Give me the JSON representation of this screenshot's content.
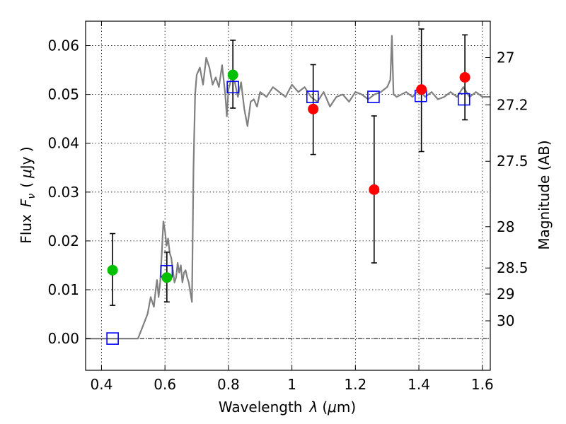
{
  "chart_data": {
    "type": "scatter",
    "xlabel_text": "Wavelength",
    "xlabel_var": "λ",
    "xlabel_unit_open": "(",
    "xlabel_unit_mu": "μ",
    "xlabel_unit_rest": "m)",
    "ylabel_text": "Flux",
    "ylabel_var": "F",
    "ylabel_sub": "ν",
    "ylabel_unit_open": "(",
    "ylabel_unit_mu": "μ",
    "ylabel_unit_rest": "Jy )",
    "y2label": "Magnitude (AB)",
    "xlim": [
      0.35,
      1.625
    ],
    "ylim": [
      -0.0065,
      0.065
    ],
    "xticks": [
      0.4,
      0.6,
      0.8,
      1.0,
      1.2,
      1.4,
      1.6
    ],
    "xtick_labels": [
      "0.4",
      "0.6",
      "0.8",
      "1",
      "1.2",
      "1.4",
      "1.6"
    ],
    "yticks": [
      0.0,
      0.01,
      0.02,
      0.03,
      0.04,
      0.05,
      0.06
    ],
    "ytick_labels": [
      "0.00",
      "0.01",
      "0.02",
      "0.03",
      "0.04",
      "0.05",
      "0.06"
    ],
    "mag_ticks": [
      27,
      27.2,
      27.5,
      28,
      28.5,
      29,
      30
    ],
    "mag_tick_labels": [
      "27",
      "27.2",
      "27.5",
      "28",
      "28.5",
      "29",
      "30"
    ],
    "grid": true,
    "colors": {
      "model": "#808080",
      "green": "#00c000",
      "red": "#ff0000",
      "square": "#0000ff",
      "errorbar": "#000000"
    },
    "model_spectrum": {
      "x": [
        0.35,
        0.5,
        0.515,
        0.53,
        0.545,
        0.555,
        0.565,
        0.57,
        0.575,
        0.58,
        0.585,
        0.59,
        0.595,
        0.6,
        0.605,
        0.61,
        0.615,
        0.62,
        0.625,
        0.63,
        0.635,
        0.64,
        0.645,
        0.65,
        0.655,
        0.66,
        0.665,
        0.67,
        0.675,
        0.68,
        0.685,
        0.69,
        0.695,
        0.7,
        0.71,
        0.72,
        0.73,
        0.74,
        0.75,
        0.76,
        0.77,
        0.78,
        0.79,
        0.795,
        0.8,
        0.81,
        0.82,
        0.83,
        0.84,
        0.85,
        0.86,
        0.87,
        0.88,
        0.89,
        0.9,
        0.92,
        0.94,
        0.96,
        0.98,
        1.0,
        1.02,
        1.04,
        1.06,
        1.08,
        1.1,
        1.12,
        1.14,
        1.16,
        1.18,
        1.2,
        1.22,
        1.24,
        1.26,
        1.28,
        1.3,
        1.31,
        1.315,
        1.32,
        1.33,
        1.36,
        1.38,
        1.4,
        1.42,
        1.44,
        1.46,
        1.48,
        1.5,
        1.52,
        1.54,
        1.56,
        1.58,
        1.6,
        1.625
      ],
      "y": [
        0.0,
        0.0,
        0.0,
        0.0025,
        0.005,
        0.0085,
        0.0065,
        0.0095,
        0.012,
        0.0085,
        0.0115,
        0.0175,
        0.024,
        0.022,
        0.019,
        0.0205,
        0.0175,
        0.0165,
        0.014,
        0.0115,
        0.0125,
        0.0155,
        0.0135,
        0.015,
        0.0115,
        0.0135,
        0.014,
        0.0125,
        0.0115,
        0.0095,
        0.0075,
        0.035,
        0.05,
        0.054,
        0.0555,
        0.052,
        0.0575,
        0.0555,
        0.052,
        0.0535,
        0.0515,
        0.056,
        0.05,
        0.0455,
        0.051,
        0.0535,
        0.0525,
        0.0495,
        0.0525,
        0.047,
        0.0435,
        0.0485,
        0.049,
        0.0475,
        0.0505,
        0.0495,
        0.0515,
        0.0505,
        0.0495,
        0.052,
        0.0505,
        0.0515,
        0.0495,
        0.0485,
        0.0505,
        0.0475,
        0.0495,
        0.05,
        0.0485,
        0.0505,
        0.05,
        0.049,
        0.05,
        0.0505,
        0.0515,
        0.053,
        0.062,
        0.05,
        0.0495,
        0.0505,
        0.0495,
        0.051,
        0.0495,
        0.0505,
        0.049,
        0.0495,
        0.0505,
        0.0495,
        0.0515,
        0.0495,
        0.0505,
        0.0495,
        0.0495
      ]
    },
    "model_bands": {
      "x": [
        0.435,
        0.605,
        0.814,
        1.065,
        1.257,
        1.406,
        1.542
      ],
      "y": [
        0.0,
        0.0138,
        0.0515,
        0.0495,
        0.0495,
        0.0497,
        0.049
      ]
    },
    "observed_green": [
      {
        "x": 0.435,
        "y": 0.014,
        "err_low": 0.0072,
        "err_high": 0.0075
      },
      {
        "x": 0.606,
        "y": 0.0125,
        "err_low": 0.005,
        "err_high": 0.0052
      },
      {
        "x": 0.814,
        "y": 0.054,
        "err_low": 0.0068,
        "err_high": 0.0071
      }
    ],
    "observed_red": [
      {
        "x": 1.067,
        "y": 0.047,
        "err_low": 0.0093,
        "err_high": 0.0091
      },
      {
        "x": 1.259,
        "y": 0.0305,
        "err_low": 0.015,
        "err_high": 0.0151
      },
      {
        "x": 1.408,
        "y": 0.051,
        "err_low": 0.0127,
        "err_high": 0.0124
      },
      {
        "x": 1.545,
        "y": 0.0535,
        "err_low": 0.0087,
        "err_high": 0.0087
      }
    ]
  }
}
